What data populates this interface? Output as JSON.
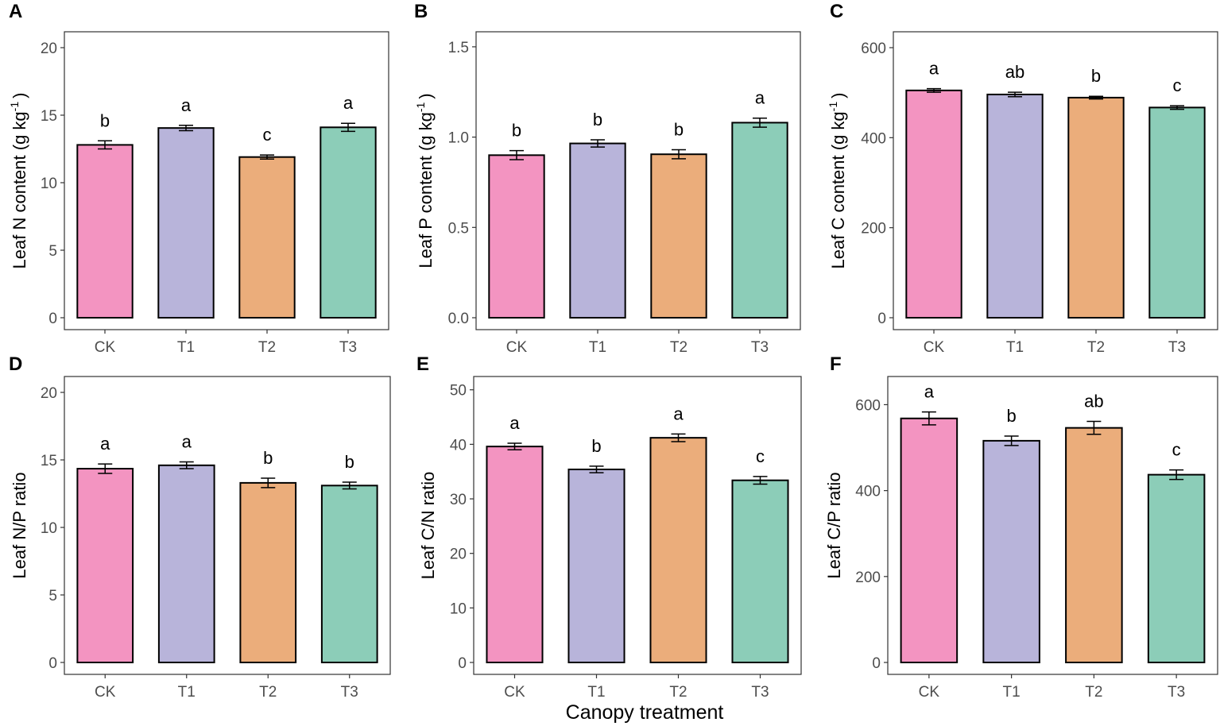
{
  "figure": {
    "x_title": "Canopy treatment",
    "colors": {
      "CK": "#f394c1",
      "T1": "#b8b4da",
      "T2": "#ebad7b",
      "T3": "#8ccdb8"
    }
  },
  "chart_data": [
    {
      "panel": "A",
      "type": "bar",
      "ylabel": "Leaf N content (g kg-1)",
      "ylabel_main": "Leaf N content (g kg",
      "ylabel_sup": "-1",
      "ylabel_end": ")",
      "categories": [
        "CK",
        "T1",
        "T2",
        "T3"
      ],
      "values": [
        12.8,
        14.05,
        11.9,
        14.1
      ],
      "errors": [
        0.3,
        0.2,
        0.15,
        0.3
      ],
      "letters": [
        "b",
        "a",
        "c",
        "a"
      ],
      "ylim": [
        0,
        21
      ],
      "yticks": [
        0,
        5,
        10,
        15,
        20
      ],
      "ytick_labels": [
        "0",
        "5",
        "10",
        "15",
        "20"
      ]
    },
    {
      "panel": "B",
      "type": "bar",
      "ylabel": "Leaf P content (g kg-1)",
      "ylabel_main": "Leaf P content (g kg",
      "ylabel_sup": "-1",
      "ylabel_end": ")",
      "categories": [
        "CK",
        "T1",
        "T2",
        "T3"
      ],
      "values": [
        0.9,
        0.965,
        0.905,
        1.08
      ],
      "errors": [
        0.025,
        0.02,
        0.025,
        0.025
      ],
      "letters": [
        "b",
        "b",
        "b",
        "a"
      ],
      "ylim": [
        0,
        1.57
      ],
      "yticks": [
        0,
        0.5,
        1.0,
        1.5
      ],
      "ytick_labels": [
        "0.0",
        "0.5",
        "1.0",
        "1.5"
      ]
    },
    {
      "panel": "C",
      "type": "bar",
      "ylabel": "Leaf C content (g kg-1)",
      "ylabel_main": "Leaf C content (g kg",
      "ylabel_sup": "-1",
      "ylabel_end": ")",
      "categories": [
        "CK",
        "T1",
        "T2",
        "T3"
      ],
      "values": [
        505,
        496,
        489,
        467
      ],
      "errors": [
        4,
        5,
        3,
        4
      ],
      "letters": [
        "a",
        "ab",
        "b",
        "c"
      ],
      "ylim": [
        0,
        630
      ],
      "yticks": [
        0,
        200,
        400,
        600
      ],
      "ytick_labels": [
        "0",
        "200",
        "400",
        "600"
      ]
    },
    {
      "panel": "D",
      "type": "bar",
      "ylabel": "Leaf N/P ratio",
      "categories": [
        "CK",
        "T1",
        "T2",
        "T3"
      ],
      "values": [
        14.35,
        14.6,
        13.3,
        13.1
      ],
      "errors": [
        0.35,
        0.25,
        0.35,
        0.25
      ],
      "letters": [
        "a",
        "a",
        "b",
        "b"
      ],
      "ylim": [
        0,
        21
      ],
      "yticks": [
        0,
        5,
        10,
        15,
        20
      ],
      "ytick_labels": [
        "0",
        "5",
        "10",
        "15",
        "20"
      ]
    },
    {
      "panel": "E",
      "type": "bar",
      "ylabel": "Leaf C/N ratio",
      "categories": [
        "CK",
        "T1",
        "T2",
        "T3"
      ],
      "values": [
        39.6,
        35.4,
        41.2,
        33.4
      ],
      "errors": [
        0.6,
        0.6,
        0.7,
        0.7
      ],
      "letters": [
        "a",
        "b",
        "a",
        "c"
      ],
      "ylim": [
        0,
        52
      ],
      "yticks": [
        0,
        10,
        20,
        30,
        40,
        50
      ],
      "ytick_labels": [
        "0",
        "10",
        "20",
        "30",
        "40",
        "50"
      ]
    },
    {
      "panel": "F",
      "type": "bar",
      "ylabel": "Leaf C/P ratio",
      "categories": [
        "CK",
        "T1",
        "T2",
        "T3"
      ],
      "values": [
        568,
        516,
        546,
        437
      ],
      "errors": [
        15,
        11,
        15,
        11
      ],
      "letters": [
        "a",
        "b",
        "ab",
        "c"
      ],
      "ylim": [
        0,
        660
      ],
      "yticks": [
        0,
        200,
        400,
        600
      ],
      "ytick_labels": [
        "0",
        "200",
        "400",
        "600"
      ]
    }
  ]
}
